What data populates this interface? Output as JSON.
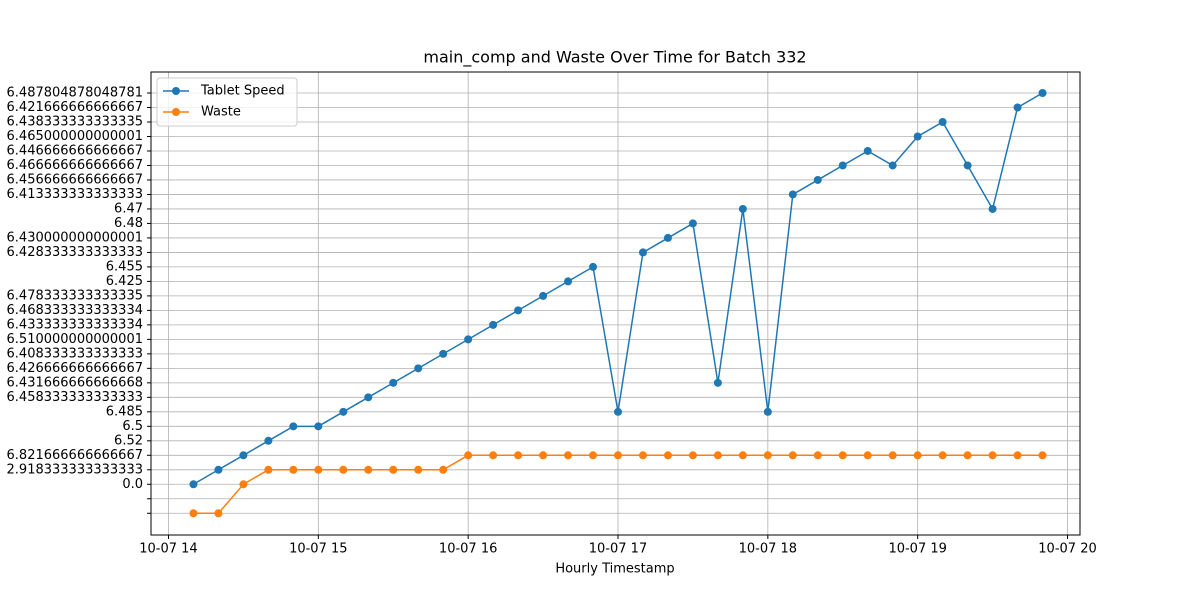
{
  "chart_data": {
    "type": "line",
    "title": "main_comp and Waste Over Time for Batch 332",
    "xlabel": "Hourly Timestamp",
    "x": [
      "10-07 14:10",
      "10-07 14:20",
      "10-07 14:30",
      "10-07 14:40",
      "10-07 14:50",
      "10-07 15:00",
      "10-07 15:10",
      "10-07 15:20",
      "10-07 15:30",
      "10-07 15:40",
      "10-07 15:50",
      "10-07 16:00",
      "10-07 16:10",
      "10-07 16:20",
      "10-07 16:30",
      "10-07 16:40",
      "10-07 16:50",
      "10-07 17:00",
      "10-07 17:10",
      "10-07 17:20",
      "10-07 17:30",
      "10-07 17:40",
      "10-07 17:50",
      "10-07 18:00",
      "10-07 18:10",
      "10-07 18:20",
      "10-07 18:30",
      "10-07 18:40",
      "10-07 18:50",
      "10-07 19:00",
      "10-07 19:10",
      "10-07 19:20",
      "10-07 19:30",
      "10-07 19:40",
      "10-07 19:50"
    ],
    "ycategories": [
      null,
      null,
      "0.0",
      "2.918333333333333",
      "6.821666666666667",
      "6.52",
      "6.5",
      "6.485",
      "6.458333333333333",
      "6.431666666666668",
      "6.426666666666667",
      "6.408333333333333",
      "6.510000000000001",
      "6.433333333333334",
      "6.468333333333334",
      "6.478333333333335",
      "6.425",
      "6.455",
      "6.428333333333333",
      "6.430000000000001",
      "6.48",
      "6.47",
      "6.413333333333333",
      "6.456666666666667",
      "6.466666666666667",
      "6.446666666666667",
      "6.465000000000001",
      "6.438333333333335",
      "6.421666666666667",
      "6.487804878048781"
    ],
    "series": [
      {
        "name": "Tablet Speed",
        "color": "#1f77b4",
        "values": [
          2,
          3,
          4,
          5,
          6,
          6,
          7,
          8,
          9,
          10,
          11,
          12,
          13,
          14,
          15,
          16,
          17,
          7,
          18,
          19,
          20,
          9,
          21,
          7,
          22,
          23,
          24,
          25,
          24,
          26,
          27,
          24,
          21,
          28,
          29
        ]
      },
      {
        "name": "Waste",
        "color": "#ff7f0e",
        "values": [
          0,
          0,
          2,
          3,
          3,
          3,
          3,
          3,
          3,
          3,
          3,
          4,
          4,
          4,
          4,
          4,
          4,
          4,
          4,
          4,
          4,
          4,
          4,
          4,
          4,
          4,
          4,
          4,
          4,
          4,
          4,
          4,
          4,
          4,
          4
        ]
      }
    ],
    "xlim": [
      "10-07 13:53",
      "10-07 20:05"
    ],
    "xticks": [
      {
        "value": "10-07 14:00",
        "label": "10-07 14"
      },
      {
        "value": "10-07 15:00",
        "label": "10-07 15"
      },
      {
        "value": "10-07 16:00",
        "label": "10-07 16"
      },
      {
        "value": "10-07 17:00",
        "label": "10-07 17"
      },
      {
        "value": "10-07 18:00",
        "label": "10-07 18"
      },
      {
        "value": "10-07 19:00",
        "label": "10-07 19"
      },
      {
        "value": "10-07 20:00",
        "label": "10-07 20"
      }
    ],
    "ylim": [
      -1.5,
      30.45
    ],
    "grid": true,
    "legend": "upper left"
  }
}
